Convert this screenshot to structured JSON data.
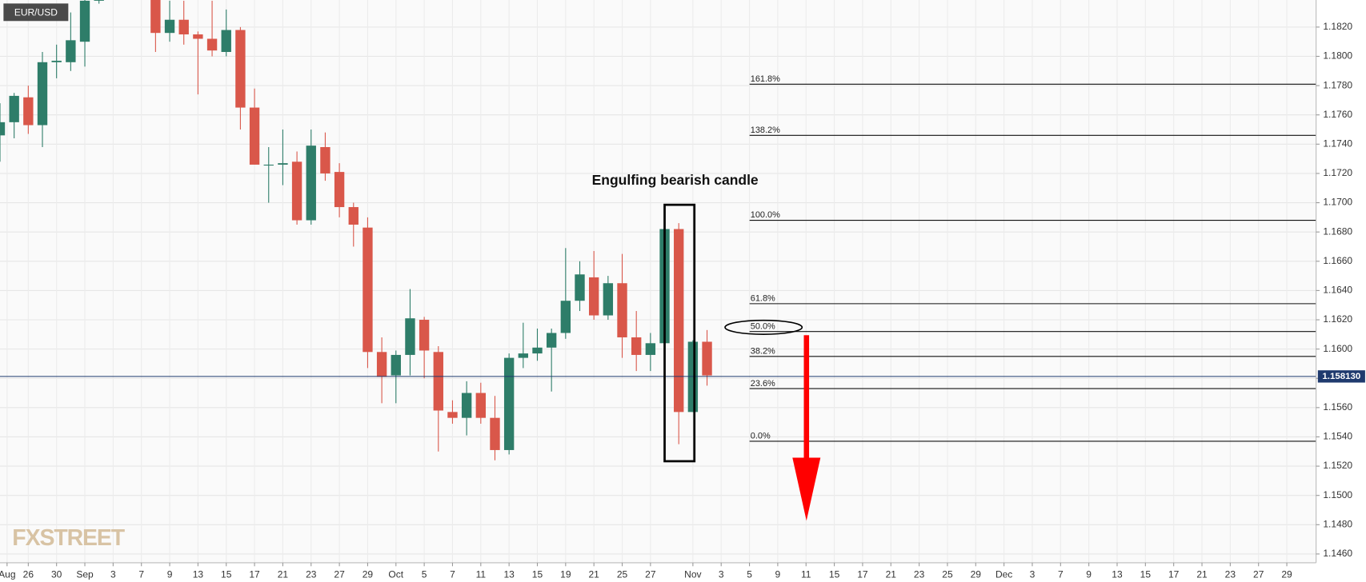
{
  "chart_data": {
    "type": "candlestick",
    "symbol": "EUR/USD",
    "annotation": "Engulfing bearish candle",
    "watermark": "FXSTREET",
    "up_color": "#2e7d69",
    "down_color": "#d9574a",
    "grid": true,
    "x": [
      0,
      1,
      2,
      3,
      4,
      5,
      6,
      7,
      11,
      12,
      13,
      14,
      15,
      16,
      17,
      18,
      19,
      20,
      21,
      22,
      23,
      24,
      25,
      26,
      27,
      28,
      29,
      30,
      31,
      32,
      33,
      34,
      35,
      36,
      37,
      38,
      39,
      40,
      41,
      42,
      43,
      44,
      45,
      46,
      47,
      48,
      49,
      50
    ],
    "open": [
      1.1746,
      1.1755,
      1.1772,
      1.1753,
      1.1796,
      1.1796,
      1.181,
      1.1838,
      1.1842,
      1.1816,
      1.1825,
      1.1815,
      1.1812,
      1.1803,
      1.1818,
      1.1765,
      1.1726,
      1.1726,
      1.1728,
      1.1688,
      1.1738,
      1.1721,
      1.1697,
      1.1683,
      1.1598,
      1.1582,
      1.1596,
      1.162,
      1.1598,
      1.1557,
      1.1553,
      1.157,
      1.1553,
      1.1531,
      1.1594,
      1.1597,
      1.1601,
      1.1611,
      1.1633,
      1.1649,
      1.1623,
      1.1645,
      1.1608,
      1.1596,
      1.1604,
      1.1682,
      1.1557,
      1.1605
    ],
    "high": [
      1.1768,
      1.1775,
      1.178,
      1.1803,
      1.1808,
      1.183,
      1.1846,
      1.185,
      1.1845,
      1.1838,
      1.1838,
      1.1817,
      1.1838,
      1.1832,
      1.182,
      1.1778,
      1.1738,
      1.175,
      1.1735,
      1.175,
      1.1748,
      1.1727,
      1.17,
      1.169,
      1.1608,
      1.1599,
      1.1641,
      1.1622,
      1.1602,
      1.1565,
      1.1578,
      1.1577,
      1.1568,
      1.1597,
      1.1618,
      1.1614,
      1.1614,
      1.1669,
      1.166,
      1.1667,
      1.165,
      1.1665,
      1.1626,
      1.1611,
      1.1682,
      1.1686,
      1.1606,
      1.1613
    ],
    "low": [
      1.1728,
      1.1744,
      1.1747,
      1.1738,
      1.1785,
      1.179,
      1.1793,
      1.1836,
      1.1803,
      1.181,
      1.1808,
      1.1774,
      1.18,
      1.18,
      1.175,
      1.1726,
      1.17,
      1.1712,
      1.1685,
      1.1685,
      1.1715,
      1.169,
      1.167,
      1.1587,
      1.1563,
      1.1563,
      1.1582,
      1.158,
      1.153,
      1.1549,
      1.1541,
      1.1549,
      1.1524,
      1.1528,
      1.1587,
      1.1592,
      1.1571,
      1.1607,
      1.1626,
      1.162,
      1.162,
      1.1594,
      1.1585,
      1.1585,
      1.1604,
      1.1535,
      1.1557,
      1.1575
    ],
    "close": [
      1.1755,
      1.1773,
      1.1753,
      1.1796,
      1.1797,
      1.1811,
      1.1838,
      1.1845,
      1.1816,
      1.1825,
      1.1815,
      1.1812,
      1.1804,
      1.1818,
      1.1765,
      1.1726,
      1.1726,
      1.1727,
      1.1688,
      1.1739,
      1.172,
      1.1697,
      1.1685,
      1.1598,
      1.1581,
      1.1596,
      1.1621,
      1.1599,
      1.1558,
      1.1553,
      1.157,
      1.1553,
      1.1531,
      1.1594,
      1.1597,
      1.1601,
      1.1611,
      1.1633,
      1.1651,
      1.1623,
      1.1645,
      1.1608,
      1.1596,
      1.1604,
      1.1682,
      1.1557,
      1.1605,
      1.1582
    ],
    "xlim": [
      0,
      93.07
    ],
    "ylim": [
      1.1454,
      1.18385
    ],
    "xticks": [
      {
        "value": 0.5,
        "label": "Aug"
      },
      {
        "value": 2,
        "label": "26"
      },
      {
        "value": 4,
        "label": "30"
      },
      {
        "value": 6,
        "label": "Sep"
      },
      {
        "value": 8,
        "label": "3"
      },
      {
        "value": 10,
        "label": "7"
      },
      {
        "value": 12,
        "label": "9"
      },
      {
        "value": 14,
        "label": "13"
      },
      {
        "value": 16,
        "label": "15"
      },
      {
        "value": 18,
        "label": "17"
      },
      {
        "value": 20,
        "label": "21"
      },
      {
        "value": 22,
        "label": "23"
      },
      {
        "value": 24,
        "label": "27"
      },
      {
        "value": 26,
        "label": "29"
      },
      {
        "value": 28,
        "label": "Oct"
      },
      {
        "value": 30,
        "label": "5"
      },
      {
        "value": 32,
        "label": "7"
      },
      {
        "value": 34,
        "label": "11"
      },
      {
        "value": 36,
        "label": "13"
      },
      {
        "value": 38,
        "label": "15"
      },
      {
        "value": 40,
        "label": "19"
      },
      {
        "value": 42,
        "label": "21"
      },
      {
        "value": 44,
        "label": "25"
      },
      {
        "value": 46,
        "label": "27"
      },
      {
        "value": 49,
        "label": "Nov"
      },
      {
        "value": 51,
        "label": "3"
      },
      {
        "value": 53,
        "label": "5"
      },
      {
        "value": 55,
        "label": "9"
      },
      {
        "value": 57,
        "label": "11"
      },
      {
        "value": 59,
        "label": "15"
      },
      {
        "value": 61,
        "label": "17"
      },
      {
        "value": 63,
        "label": "21"
      },
      {
        "value": 65,
        "label": "23"
      },
      {
        "value": 67,
        "label": "25"
      },
      {
        "value": 69,
        "label": "29"
      },
      {
        "value": 71,
        "label": "Dec"
      },
      {
        "value": 73,
        "label": "3"
      },
      {
        "value": 75,
        "label": "7"
      },
      {
        "value": 77,
        "label": "9"
      },
      {
        "value": 79,
        "label": "13"
      },
      {
        "value": 81,
        "label": "15"
      },
      {
        "value": 83,
        "label": "17"
      },
      {
        "value": 85,
        "label": "21"
      },
      {
        "value": 87,
        "label": "23"
      },
      {
        "value": 89,
        "label": "27"
      },
      {
        "value": 91,
        "label": "29"
      }
    ],
    "yticks": [
      {
        "value": 1.146,
        "label": "1.1460"
      },
      {
        "value": 1.148,
        "label": "1.1480"
      },
      {
        "value": 1.15,
        "label": "1.1500"
      },
      {
        "value": 1.152,
        "label": "1.1520"
      },
      {
        "value": 1.154,
        "label": "1.1540"
      },
      {
        "value": 1.156,
        "label": "1.1560"
      },
      {
        "value": 1.158,
        "label": "1.1580"
      },
      {
        "value": 1.16,
        "label": "1.1600"
      },
      {
        "value": 1.162,
        "label": "1.1620"
      },
      {
        "value": 1.164,
        "label": "1.1640"
      },
      {
        "value": 1.166,
        "label": "1.1660"
      },
      {
        "value": 1.168,
        "label": "1.1680"
      },
      {
        "value": 1.17,
        "label": "1.1700"
      },
      {
        "value": 1.172,
        "label": "1.1720"
      },
      {
        "value": 1.174,
        "label": "1.1740"
      },
      {
        "value": 1.176,
        "label": "1.1760"
      },
      {
        "value": 1.178,
        "label": "1.1780"
      },
      {
        "value": 1.18,
        "label": "1.1800"
      },
      {
        "value": 1.182,
        "label": "1.1820"
      }
    ],
    "last_price": {
      "value": 1.15813,
      "label": "1.158130"
    },
    "fib_levels": [
      {
        "value": 1.1781,
        "label": "161.8%"
      },
      {
        "value": 1.1746,
        "label": "138.2%"
      },
      {
        "value": 1.1688,
        "label": "100.0%"
      },
      {
        "value": 1.1631,
        "label": "61.8%"
      },
      {
        "value": 1.1612,
        "label": "50.0%"
      },
      {
        "value": 1.1595,
        "label": "38.2%"
      },
      {
        "value": 1.1573,
        "label": "23.6%"
      },
      {
        "value": 1.1537,
        "label": "0.0%"
      }
    ]
  }
}
